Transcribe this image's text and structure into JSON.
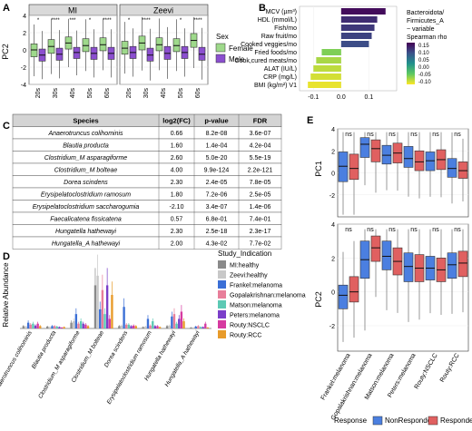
{
  "panels": {
    "A": {
      "label": "A",
      "ylabel": "PC2",
      "facets": [
        "MI",
        "Zeevi"
      ],
      "x_categories": [
        "20s",
        "30s",
        "40s",
        "50s",
        "60s"
      ],
      "y_ticks": [
        "-4",
        "-2",
        "0",
        "2",
        "4"
      ],
      "significance": {
        "MI": [
          "*",
          "****",
          "***",
          "*",
          "****"
        ],
        "Zeevi": [
          "*",
          "****",
          "",
          "*",
          "****"
        ]
      },
      "legend_title": "Sex",
      "legend_items": [
        "Female",
        "Male"
      ],
      "colors": {
        "Female": "#9ed98b",
        "Male": "#8b4fcf"
      }
    },
    "B": {
      "label": "B",
      "legend_title": [
        "Bacteroidota/",
        "Firmicutes_A",
        "~ variable",
        "Spearman rho"
      ],
      "legend_ticks": [
        "0.15",
        "0.10",
        "0.05",
        "0.00",
        "-0.05",
        "-0.10"
      ],
      "x_ticks": [
        "-0.1",
        "0.0",
        "0.1"
      ]
    },
    "C": {
      "label": "C",
      "headers": [
        "Species",
        "log2(FC)",
        "p-value",
        "FDR"
      ],
      "rows": [
        [
          "Anaerotruncus colihominis",
          "0.66",
          "8.2e-08",
          "3.6e-07"
        ],
        [
          "Blautia producta",
          "1.60",
          "1.4e-04",
          "4.2e-04"
        ],
        [
          "Clostridium_M asparagiforme",
          "2.60",
          "5.0e-20",
          "5.5e-19"
        ],
        [
          "Clostridium_M bolteae",
          "4.00",
          "9.9e-124",
          "2.2e-121"
        ],
        [
          "Dorea scindens",
          "2.30",
          "2.4e-05",
          "7.8e-05"
        ],
        [
          "Erysipelatoclostridium ramosum",
          "1.80",
          "7.2e-06",
          "2.5e-05"
        ],
        [
          "Erysipelatoclostridium saccharogumia",
          "-2.10",
          "3.4e-07",
          "1.4e-06"
        ],
        [
          "Faecalicatena fissicatena",
          "0.57",
          "6.8e-01",
          "7.4e-01"
        ],
        [
          "Hungatella hathewayi",
          "2.30",
          "2.5e-18",
          "2.3e-17"
        ],
        [
          "Hungatella_A hathewayi",
          "2.00",
          "4.3e-02",
          "7.7e-02"
        ]
      ]
    },
    "D": {
      "label": "D",
      "ylabel": "Relative Abundance",
      "x_categories": [
        "Anaerotruncus colihominis",
        "Blautia producta",
        "Clostridium_M asparagiforme",
        "Clostridium_M bolteae",
        "Dorea scindens",
        "Erysipelatoclostridium ramosum",
        "Hungatella hathewayi",
        "Hungatella_A hathewayi"
      ],
      "legend_title": "Study_Indication",
      "legend_items": [
        {
          "name": "MI:healthy",
          "color": "#8a8a8a"
        },
        {
          "name": "Zeevi:healthy",
          "color": "#c8c8c8"
        },
        {
          "name": "Frankel:melanoma",
          "color": "#3b6fd6"
        },
        {
          "name": "Gopalakrishnan:melanoma",
          "color": "#e87e9a"
        },
        {
          "name": "Matson:melanoma",
          "color": "#5cc9b4"
        },
        {
          "name": "Peters:melanoma",
          "color": "#7b3fc9"
        },
        {
          "name": "Routy:NSCLC",
          "color": "#d63aa0"
        },
        {
          "name": "Routy:RCC",
          "color": "#e89b2a"
        }
      ]
    },
    "E": {
      "label": "E",
      "top_ylabel": "PC1",
      "bottom_ylabel": "PC2",
      "ns_label": "ns",
      "x_categories": [
        "Frankel:melanoma",
        "Gopalakrishnan:melanoma",
        "Matson:melanoma",
        "Peters:melanoma",
        "Routy:NSCLC",
        "Routy:RCC"
      ],
      "legend_title": "Response",
      "legend_items": [
        {
          "name": "NonResponder",
          "color": "#4b7fe0"
        },
        {
          "name": "Responder",
          "color": "#e06060"
        }
      ]
    }
  },
  "chart_data": [
    {
      "type": "box",
      "panel": "A",
      "ylabel": "PC2",
      "ylim": [
        -4,
        4
      ],
      "facets": [
        "MI",
        "Zeevi"
      ],
      "categories": [
        "20s",
        "30s",
        "40s",
        "50s",
        "60s"
      ],
      "series": [
        {
          "facet": "MI",
          "name": "Female",
          "medians": [
            0.0,
            0.4,
            0.8,
            0.5,
            0.6
          ],
          "q1": [
            -0.8,
            -0.4,
            0.1,
            -0.2,
            -0.1
          ],
          "q3": [
            0.7,
            1.2,
            1.5,
            1.3,
            1.4
          ]
        },
        {
          "facet": "MI",
          "name": "Male",
          "medians": [
            -0.6,
            -0.5,
            -0.3,
            -0.4,
            -0.4
          ],
          "q1": [
            -1.3,
            -1.2,
            -1.0,
            -1.1,
            -1.1
          ],
          "q3": [
            0.1,
            0.2,
            0.3,
            0.3,
            0.3
          ]
        },
        {
          "facet": "Zeevi",
          "name": "Female",
          "medians": [
            0.2,
            0.8,
            0.6,
            0.5,
            1.1
          ],
          "q1": [
            -0.5,
            0.0,
            -0.1,
            -0.2,
            0.3
          ],
          "q3": [
            1.0,
            1.6,
            1.4,
            1.3,
            1.9
          ]
        },
        {
          "facet": "Zeevi",
          "name": "Male",
          "medians": [
            -0.3,
            -0.6,
            -0.4,
            -0.3,
            -0.5
          ],
          "q1": [
            -1.0,
            -1.3,
            -1.1,
            -1.0,
            -1.2
          ],
          "q3": [
            0.4,
            0.2,
            0.4,
            0.4,
            0.3
          ]
        }
      ]
    },
    {
      "type": "bar",
      "panel": "B",
      "orientation": "horizontal",
      "categories": [
        "MCV (µm³)",
        "HDL (mmol/L)",
        "Fish/mo",
        "Raw fruit/mo",
        "Cooked veggies/mo",
        "Fried foods/mo",
        "Cook,cured meats/mo",
        "ALAT (IU/L)",
        "CRP (mg/L)",
        "BMI (kg/m²) V1"
      ],
      "values": [
        0.16,
        0.13,
        0.12,
        0.11,
        0.1,
        -0.07,
        -0.09,
        -0.1,
        -0.11,
        -0.12
      ],
      "markers": [
        "••",
        "",
        "",
        "",
        "",
        "",
        "•",
        "",
        "•",
        "•••"
      ],
      "xlim": [
        -0.15,
        0.2
      ]
    },
    {
      "type": "bar",
      "panel": "D",
      "ylabel": "Relative Abundance",
      "categories": [
        "Anaerotruncus colihominis",
        "Blautia producta",
        "Clostridium_M asparagiforme",
        "Clostridium_M bolteae",
        "Dorea scindens",
        "Erysipelatoclostridium ramosum",
        "Hungatella hathewayi",
        "Hungatella_A hathewayi"
      ],
      "series": [
        {
          "name": "MI:healthy",
          "values": [
            0.05,
            0.04,
            0.12,
            0.9,
            0.05,
            0.03,
            0.05,
            0.02
          ]
        },
        {
          "name": "Zeevi:healthy",
          "values": [
            0.04,
            0.03,
            0.15,
            1.1,
            0.06,
            0.04,
            0.06,
            0.02
          ]
        },
        {
          "name": "Frankel:melanoma",
          "values": [
            0.12,
            0.05,
            0.3,
            0.4,
            0.45,
            0.2,
            0.25,
            0.04
          ]
        },
        {
          "name": "Gopalakrishnan:melanoma",
          "values": [
            0.08,
            0.05,
            0.1,
            0.8,
            0.08,
            0.06,
            0.3,
            0.05
          ]
        },
        {
          "name": "Matson:melanoma",
          "values": [
            0.1,
            0.04,
            0.15,
            0.3,
            0.08,
            0.15,
            0.1,
            0.03
          ]
        },
        {
          "name": "Peters:melanoma",
          "values": [
            0.06,
            0.03,
            0.1,
            0.9,
            0.05,
            0.05,
            0.2,
            0.03
          ]
        },
        {
          "name": "Routy:NSCLC",
          "values": [
            0.1,
            0.02,
            0.08,
            0.2,
            0.06,
            0.05,
            0.35,
            0.1
          ]
        },
        {
          "name": "Routy:RCC",
          "values": [
            0.05,
            0.03,
            0.05,
            0.7,
            0.05,
            0.03,
            0.15,
            0.02
          ]
        }
      ]
    },
    {
      "type": "box",
      "panel": "E",
      "categories": [
        "Frankel:melanoma",
        "Gopalakrishnan:melanoma",
        "Matson:melanoma",
        "Peters:melanoma",
        "Routy:NSCLC",
        "Routy:RCC"
      ],
      "top": {
        "ylabel": "PC1",
        "ylim": [
          -4,
          4
        ],
        "series": [
          {
            "name": "NonResponder",
            "medians": [
              0.6,
              2.6,
              1.6,
              1.3,
              1.1,
              0.4
            ],
            "q1": [
              -0.8,
              1.4,
              0.8,
              0.5,
              0.2,
              -0.4
            ],
            "q3": [
              1.9,
              3.2,
              2.5,
              2.4,
              1.9,
              1.3
            ]
          },
          {
            "name": "Responder",
            "medians": [
              0.4,
              2.2,
              1.8,
              1.0,
              1.2,
              0.2
            ],
            "q1": [
              -0.6,
              1.0,
              0.9,
              0.2,
              0.3,
              -0.5
            ],
            "q3": [
              1.7,
              3.0,
              2.7,
              2.0,
              2.1,
              1.0
            ]
          }
        ]
      },
      "bottom": {
        "ylabel": "PC2",
        "ylim": [
          -3.5,
          4
        ],
        "series": [
          {
            "name": "NonResponder",
            "medians": [
              -0.2,
              1.9,
              2.1,
              1.5,
              1.4,
              1.6
            ],
            "q1": [
              -1.0,
              0.8,
              1.3,
              0.6,
              0.7,
              0.8
            ],
            "q3": [
              0.4,
              3.0,
              3.0,
              2.3,
              2.1,
              2.3
            ]
          },
          {
            "name": "Responder",
            "medians": [
              0.0,
              2.6,
              1.8,
              1.4,
              1.3,
              1.7
            ],
            "q1": [
              -0.6,
              1.8,
              1.0,
              0.6,
              0.6,
              0.9
            ],
            "q3": [
              0.9,
              3.3,
              2.6,
              2.2,
              2.0,
              2.4
            ]
          }
        ]
      }
    }
  ]
}
